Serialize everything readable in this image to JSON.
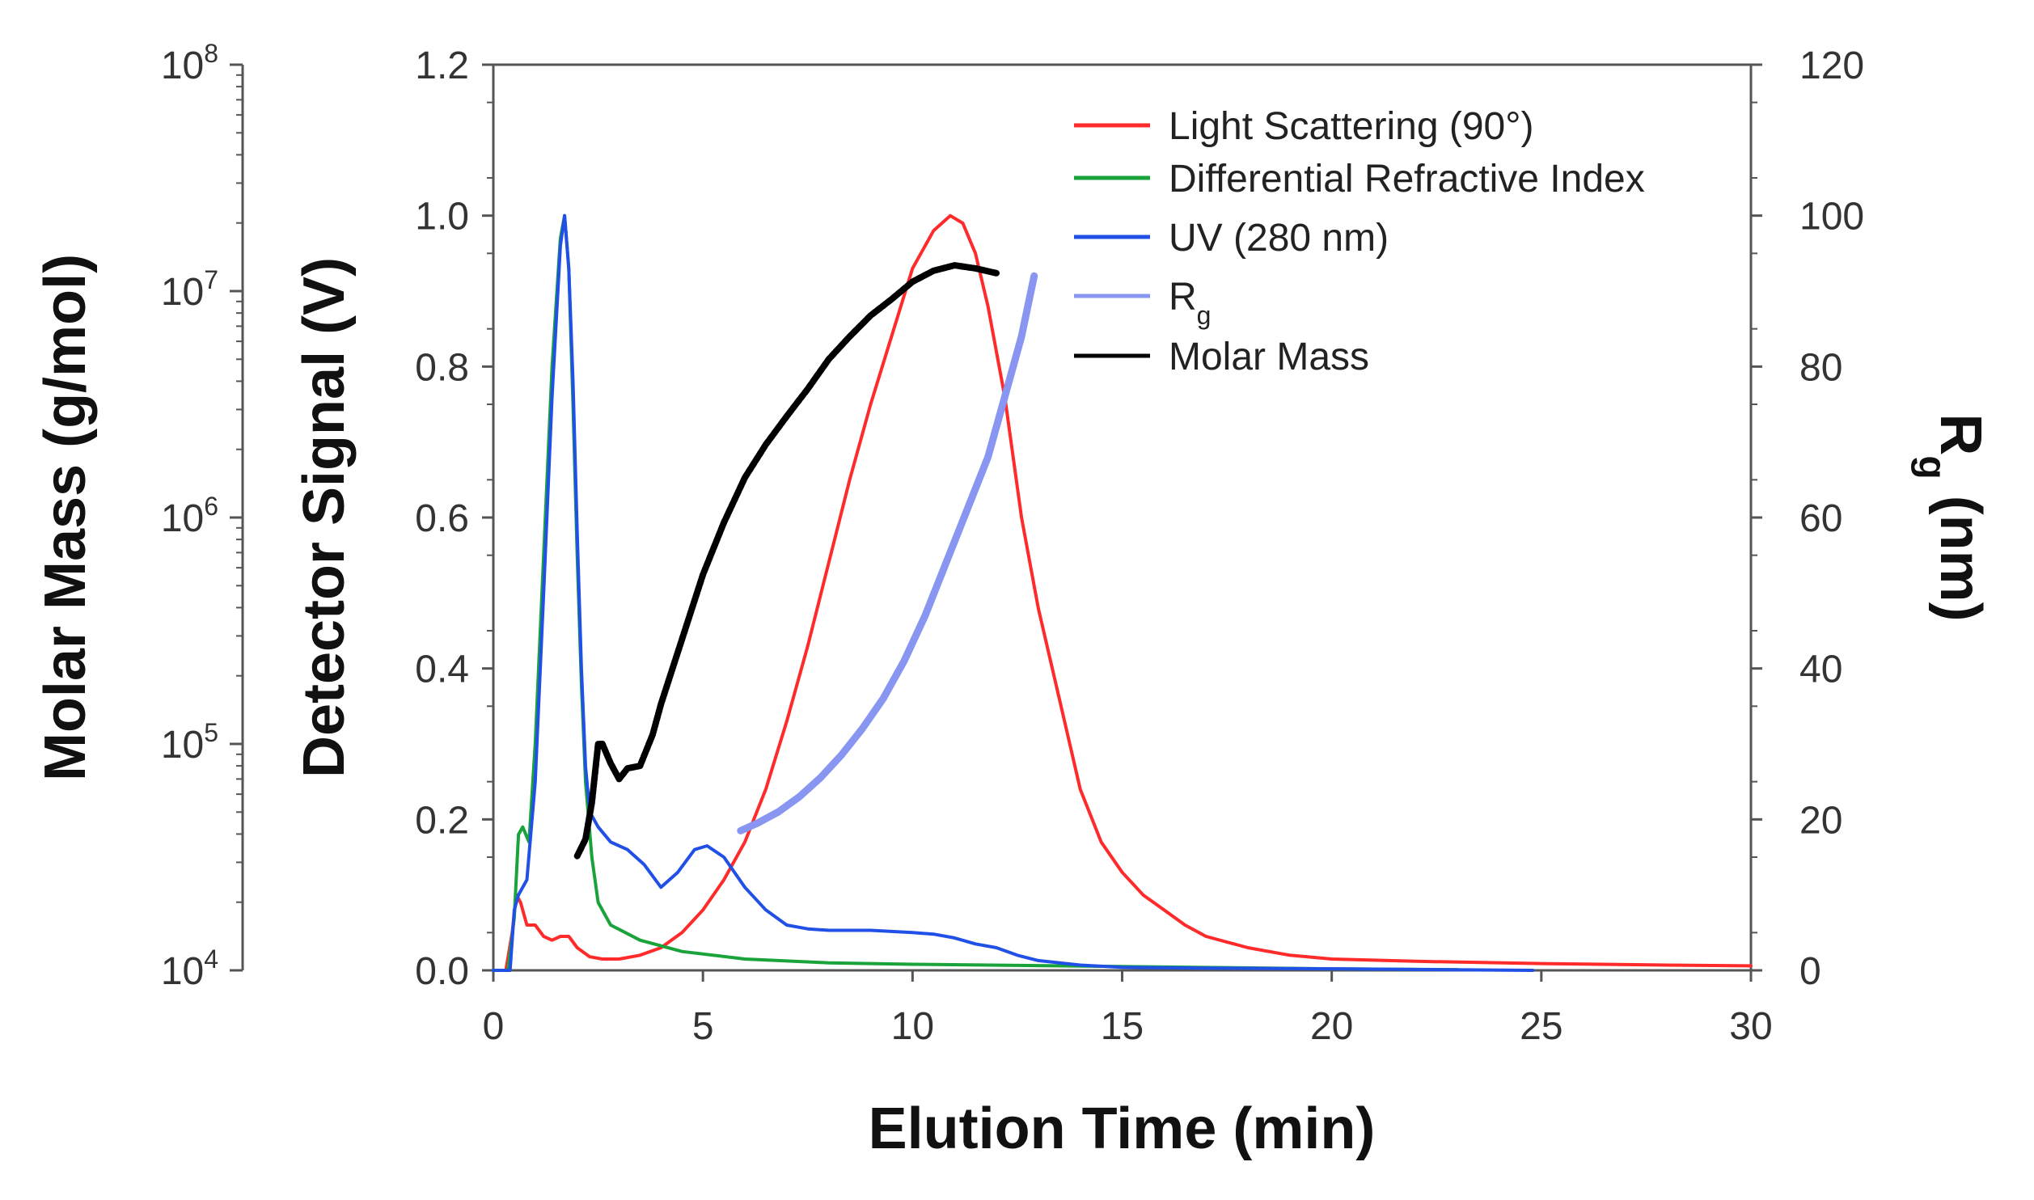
{
  "chart_data": {
    "type": "line",
    "title": "",
    "xlabel": "Elution Time (min)",
    "x_ticks": [
      "0",
      "5",
      "10",
      "15",
      "20",
      "25",
      "30"
    ],
    "xlim": [
      0,
      30
    ],
    "axes": {
      "detector": {
        "label": "Detector Signal (V)",
        "ylim": [
          0,
          1.2
        ],
        "ticks": [
          "0.0",
          "0.2",
          "0.4",
          "0.6",
          "0.8",
          "1.0",
          "1.2"
        ]
      },
      "molar_mass": {
        "label": "Molar Mass (g/mol)",
        "scale": "log",
        "ylim": [
          10000,
          100000000
        ],
        "ticks": [
          {
            "base": "10",
            "exp": "4"
          },
          {
            "base": "10",
            "exp": "5"
          },
          {
            "base": "10",
            "exp": "6"
          },
          {
            "base": "10",
            "exp": "7"
          },
          {
            "base": "10",
            "exp": "8"
          }
        ]
      },
      "rg": {
        "label_main": "R",
        "label_sub": "g",
        "label_unit": " (nm)",
        "ylim": [
          0,
          120
        ],
        "ticks": [
          "0",
          "20",
          "40",
          "60",
          "80",
          "100",
          "120"
        ]
      }
    },
    "legend_placement": "top-right",
    "series": [
      {
        "name": "Light Scattering (90°)",
        "color": "#ff2a2a",
        "axis": "detector",
        "points": [
          [
            0,
            0
          ],
          [
            0.3,
            0
          ],
          [
            0.45,
            0.05
          ],
          [
            0.55,
            0.1
          ],
          [
            0.65,
            0.09
          ],
          [
            0.8,
            0.06
          ],
          [
            1.0,
            0.06
          ],
          [
            1.2,
            0.045
          ],
          [
            1.4,
            0.04
          ],
          [
            1.6,
            0.045
          ],
          [
            1.8,
            0.045
          ],
          [
            2.0,
            0.03
          ],
          [
            2.3,
            0.018
          ],
          [
            2.6,
            0.015
          ],
          [
            3.0,
            0.015
          ],
          [
            3.5,
            0.02
          ],
          [
            4.0,
            0.03
          ],
          [
            4.5,
            0.05
          ],
          [
            5.0,
            0.08
          ],
          [
            5.5,
            0.12
          ],
          [
            6.0,
            0.17
          ],
          [
            6.5,
            0.24
          ],
          [
            7.0,
            0.33
          ],
          [
            7.5,
            0.43
          ],
          [
            8.0,
            0.54
          ],
          [
            8.5,
            0.65
          ],
          [
            9.0,
            0.75
          ],
          [
            9.5,
            0.84
          ],
          [
            10.0,
            0.93
          ],
          [
            10.5,
            0.98
          ],
          [
            10.9,
            1.0
          ],
          [
            11.2,
            0.99
          ],
          [
            11.5,
            0.95
          ],
          [
            11.8,
            0.88
          ],
          [
            12.2,
            0.76
          ],
          [
            12.6,
            0.6
          ],
          [
            13.0,
            0.48
          ],
          [
            13.5,
            0.36
          ],
          [
            14.0,
            0.24
          ],
          [
            14.5,
            0.17
          ],
          [
            15.0,
            0.13
          ],
          [
            15.5,
            0.1
          ],
          [
            16.0,
            0.08
          ],
          [
            16.5,
            0.06
          ],
          [
            17.0,
            0.045
          ],
          [
            18.0,
            0.03
          ],
          [
            19.0,
            0.02
          ],
          [
            20.0,
            0.015
          ],
          [
            22.0,
            0.012
          ],
          [
            25.0,
            0.009
          ],
          [
            28.0,
            0.007
          ],
          [
            30.0,
            0.006
          ]
        ]
      },
      {
        "name": "Differential Refractive Index",
        "color": "#1aa33a",
        "axis": "detector",
        "points": [
          [
            0,
            0
          ],
          [
            0.35,
            0
          ],
          [
            0.5,
            0.07
          ],
          [
            0.6,
            0.18
          ],
          [
            0.7,
            0.19
          ],
          [
            0.85,
            0.17
          ],
          [
            1.0,
            0.3
          ],
          [
            1.2,
            0.55
          ],
          [
            1.4,
            0.8
          ],
          [
            1.6,
            0.97
          ],
          [
            1.7,
            1.0
          ],
          [
            1.8,
            0.93
          ],
          [
            1.9,
            0.75
          ],
          [
            2.0,
            0.55
          ],
          [
            2.1,
            0.38
          ],
          [
            2.2,
            0.25
          ],
          [
            2.35,
            0.15
          ],
          [
            2.5,
            0.09
          ],
          [
            2.8,
            0.06
          ],
          [
            3.5,
            0.04
          ],
          [
            4.5,
            0.025
          ],
          [
            6.0,
            0.015
          ],
          [
            8.0,
            0.01
          ],
          [
            10.0,
            0.008
          ],
          [
            15.0,
            0.005
          ],
          [
            20.0,
            0.002
          ],
          [
            23.0,
            0.001
          ]
        ]
      },
      {
        "name": "UV (280 nm)",
        "color": "#2050e6",
        "axis": "detector",
        "points": [
          [
            0,
            0
          ],
          [
            0.4,
            0
          ],
          [
            0.5,
            0.08
          ],
          [
            0.6,
            0.1
          ],
          [
            0.8,
            0.12
          ],
          [
            1.0,
            0.25
          ],
          [
            1.2,
            0.5
          ],
          [
            1.4,
            0.76
          ],
          [
            1.6,
            0.96
          ],
          [
            1.7,
            1.0
          ],
          [
            1.8,
            0.93
          ],
          [
            1.9,
            0.78
          ],
          [
            2.0,
            0.58
          ],
          [
            2.1,
            0.4
          ],
          [
            2.2,
            0.27
          ],
          [
            2.3,
            0.21
          ],
          [
            2.5,
            0.19
          ],
          [
            2.8,
            0.17
          ],
          [
            3.2,
            0.16
          ],
          [
            3.6,
            0.14
          ],
          [
            4.0,
            0.11
          ],
          [
            4.4,
            0.13
          ],
          [
            4.8,
            0.16
          ],
          [
            5.1,
            0.165
          ],
          [
            5.5,
            0.15
          ],
          [
            6.0,
            0.11
          ],
          [
            6.5,
            0.08
          ],
          [
            7.0,
            0.06
          ],
          [
            7.5,
            0.055
          ],
          [
            8.0,
            0.053
          ],
          [
            9.0,
            0.053
          ],
          [
            10.0,
            0.05
          ],
          [
            10.5,
            0.048
          ],
          [
            11.0,
            0.043
          ],
          [
            11.5,
            0.035
          ],
          [
            12.0,
            0.03
          ],
          [
            12.5,
            0.02
          ],
          [
            13.0,
            0.013
          ],
          [
            14.0,
            0.007
          ],
          [
            15.0,
            0.004
          ],
          [
            17.0,
            0.003
          ],
          [
            20.0,
            0.002
          ],
          [
            24.8,
            0.0
          ]
        ]
      },
      {
        "name_main": "R",
        "name_sub": "g",
        "color": "#8896f2",
        "axis": "rg",
        "points": [
          [
            5.9,
            18.5
          ],
          [
            6.3,
            19.5
          ],
          [
            6.8,
            21
          ],
          [
            7.3,
            23
          ],
          [
            7.8,
            25.5
          ],
          [
            8.3,
            28.5
          ],
          [
            8.8,
            32
          ],
          [
            9.3,
            36
          ],
          [
            9.8,
            41
          ],
          [
            10.3,
            47
          ],
          [
            10.8,
            54
          ],
          [
            11.3,
            61
          ],
          [
            11.8,
            68
          ],
          [
            12.2,
            76
          ],
          [
            12.6,
            84
          ],
          [
            12.9,
            92
          ]
        ]
      },
      {
        "name": "Molar Mass",
        "color": "#000000",
        "axis": "molar_mass",
        "points": [
          [
            2.0,
            32000
          ],
          [
            2.2,
            38000
          ],
          [
            2.35,
            55000
          ],
          [
            2.5,
            100000
          ],
          [
            2.6,
            100000
          ],
          [
            2.8,
            82000
          ],
          [
            3.0,
            70000
          ],
          [
            3.2,
            78000
          ],
          [
            3.5,
            80000
          ],
          [
            3.8,
            110000
          ],
          [
            4.0,
            150000
          ],
          [
            4.5,
            290000
          ],
          [
            5.0,
            560000
          ],
          [
            5.5,
            950000
          ],
          [
            6.0,
            1500000
          ],
          [
            6.5,
            2100000
          ],
          [
            7.0,
            2800000
          ],
          [
            7.5,
            3700000
          ],
          [
            8.0,
            5000000
          ],
          [
            8.5,
            6300000
          ],
          [
            9.0,
            7800000
          ],
          [
            9.5,
            9200000
          ],
          [
            10.0,
            11000000
          ],
          [
            10.5,
            12300000
          ],
          [
            11.0,
            13000000
          ],
          [
            11.5,
            12600000
          ],
          [
            12.0,
            12000000
          ]
        ]
      }
    ]
  }
}
